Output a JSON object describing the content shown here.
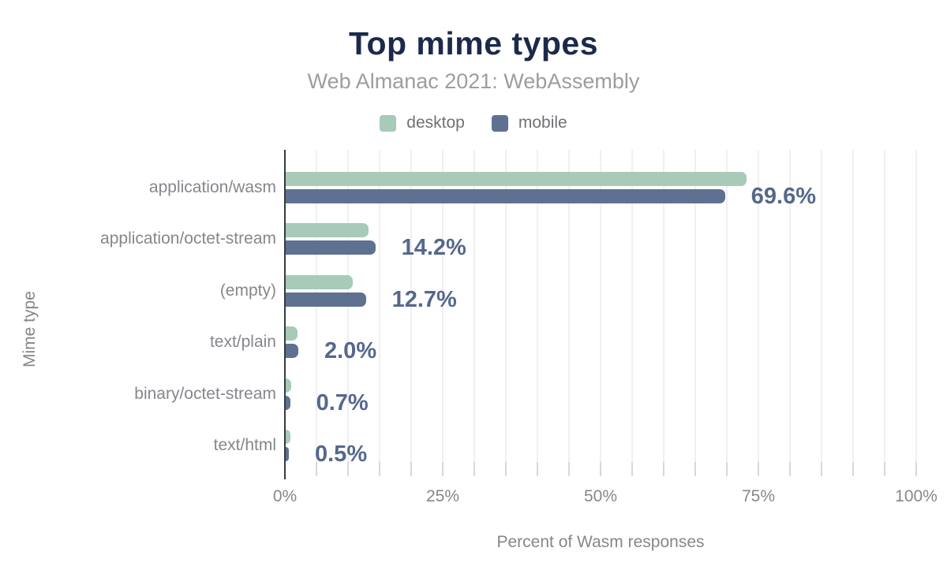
{
  "chart": {
    "title": "Top mime types",
    "subtitle": "Web Almanac 2021: WebAssembly",
    "x_axis_title": "Percent of Wasm responses",
    "y_axis_title": "Mime type"
  },
  "chart_data": {
    "type": "bar",
    "orientation": "horizontal",
    "title": "Top mime types",
    "subtitle": "Web Almanac 2021: WebAssembly",
    "xlabel": "Percent of Wasm responses",
    "ylabel": "Mime type",
    "xlim": [
      0,
      100
    ],
    "grid": true,
    "grid_step": 5,
    "legend_position": "top",
    "x_ticks": [
      {
        "value": 0,
        "label": "0%"
      },
      {
        "value": 25,
        "label": "25%"
      },
      {
        "value": 50,
        "label": "50%"
      },
      {
        "value": 75,
        "label": "75%"
      },
      {
        "value": 100,
        "label": "100%"
      }
    ],
    "categories": [
      "application/wasm",
      "application/octet-stream",
      "(empty)",
      "text/plain",
      "binary/octet-stream",
      "text/html"
    ],
    "series": [
      {
        "name": "desktop",
        "color": "#a8cab8",
        "values": [
          73.0,
          13.1,
          10.6,
          1.9,
          0.9,
          0.7
        ]
      },
      {
        "name": "mobile",
        "color": "#5e7190",
        "values": [
          69.6,
          14.2,
          12.7,
          2.0,
          0.7,
          0.5
        ]
      }
    ],
    "bar_labels": {
      "labeled_series": "mobile",
      "texts": [
        "69.6%",
        "14.2%",
        "12.7%",
        "2.0%",
        "0.7%",
        "0.5%"
      ]
    }
  },
  "colors": {
    "background": "#ffffff",
    "title": "#1b2a4b",
    "subtitle": "#9b9da1",
    "axis_text": "#85878c",
    "legend_text": "#6f7276",
    "value_label": "#55688b",
    "axis_line": "#363a41",
    "gridline": "#f0f0f2",
    "tick": "#d7d8da",
    "desktop": "#a8cab8",
    "mobile": "#5e7190"
  }
}
